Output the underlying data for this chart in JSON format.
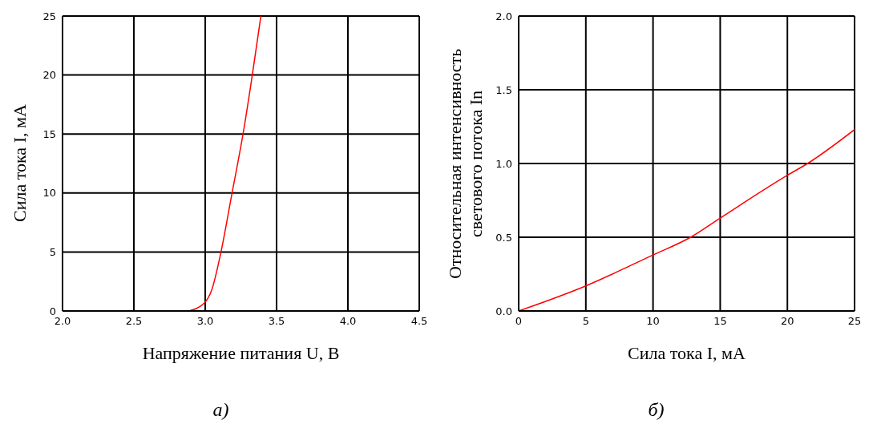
{
  "chart_data": [
    {
      "type": "line",
      "xlabel": "Напряжение питания U, В",
      "ylabel": "Сила тока I, мА",
      "x": [
        2.885,
        2.996,
        3.046,
        3.107,
        3.188,
        3.265,
        3.33,
        3.39
      ],
      "series": [
        {
          "color": "#ff0000",
          "values": [
            0,
            0.7,
            1.8,
            4.8,
            10,
            15,
            20,
            25
          ]
        }
      ],
      "xlim": [
        2.0,
        4.5
      ],
      "xticks": [
        {
          "value": 2.0,
          "label": "2.0"
        },
        {
          "value": 2.5,
          "label": "2.5"
        },
        {
          "value": 3.0,
          "label": "3.0"
        },
        {
          "value": 3.5,
          "label": "3.5"
        },
        {
          "value": 4.0,
          "label": "4.0"
        },
        {
          "value": 4.5,
          "label": "4.5"
        }
      ],
      "ylim": [
        0,
        25
      ],
      "yticks": [
        0,
        5,
        10,
        15,
        20,
        25
      ],
      "grid": true,
      "marker": "none",
      "line_style": "solid",
      "annotations": [
        "а)"
      ]
    },
    {
      "type": "line",
      "xlabel": "Сила тока I, мА",
      "ylabel": "Относительная интенсивность\nсветового потока In",
      "x": [
        0,
        5,
        10,
        12.8,
        15,
        20,
        21.5,
        25
      ],
      "series": [
        {
          "color": "#ff0000",
          "values": [
            0,
            0.17,
            0.38,
            0.5,
            0.63,
            0.92,
            1.0,
            1.23
          ]
        }
      ],
      "xlim": [
        0,
        25
      ],
      "xticks": [
        0,
        5,
        10,
        15,
        20,
        25
      ],
      "ylim": [
        0,
        2.0
      ],
      "yticks": [
        {
          "value": 0,
          "label": "0.0"
        },
        {
          "value": 0.5,
          "label": "0.5"
        },
        {
          "value": 1.0,
          "label": "1.0"
        },
        {
          "value": 1.5,
          "label": "1.5"
        },
        {
          "value": 2.0,
          "label": "2.0"
        }
      ],
      "grid": true,
      "marker": "none",
      "line_style": "solid",
      "annotations": [
        "б)"
      ]
    }
  ]
}
